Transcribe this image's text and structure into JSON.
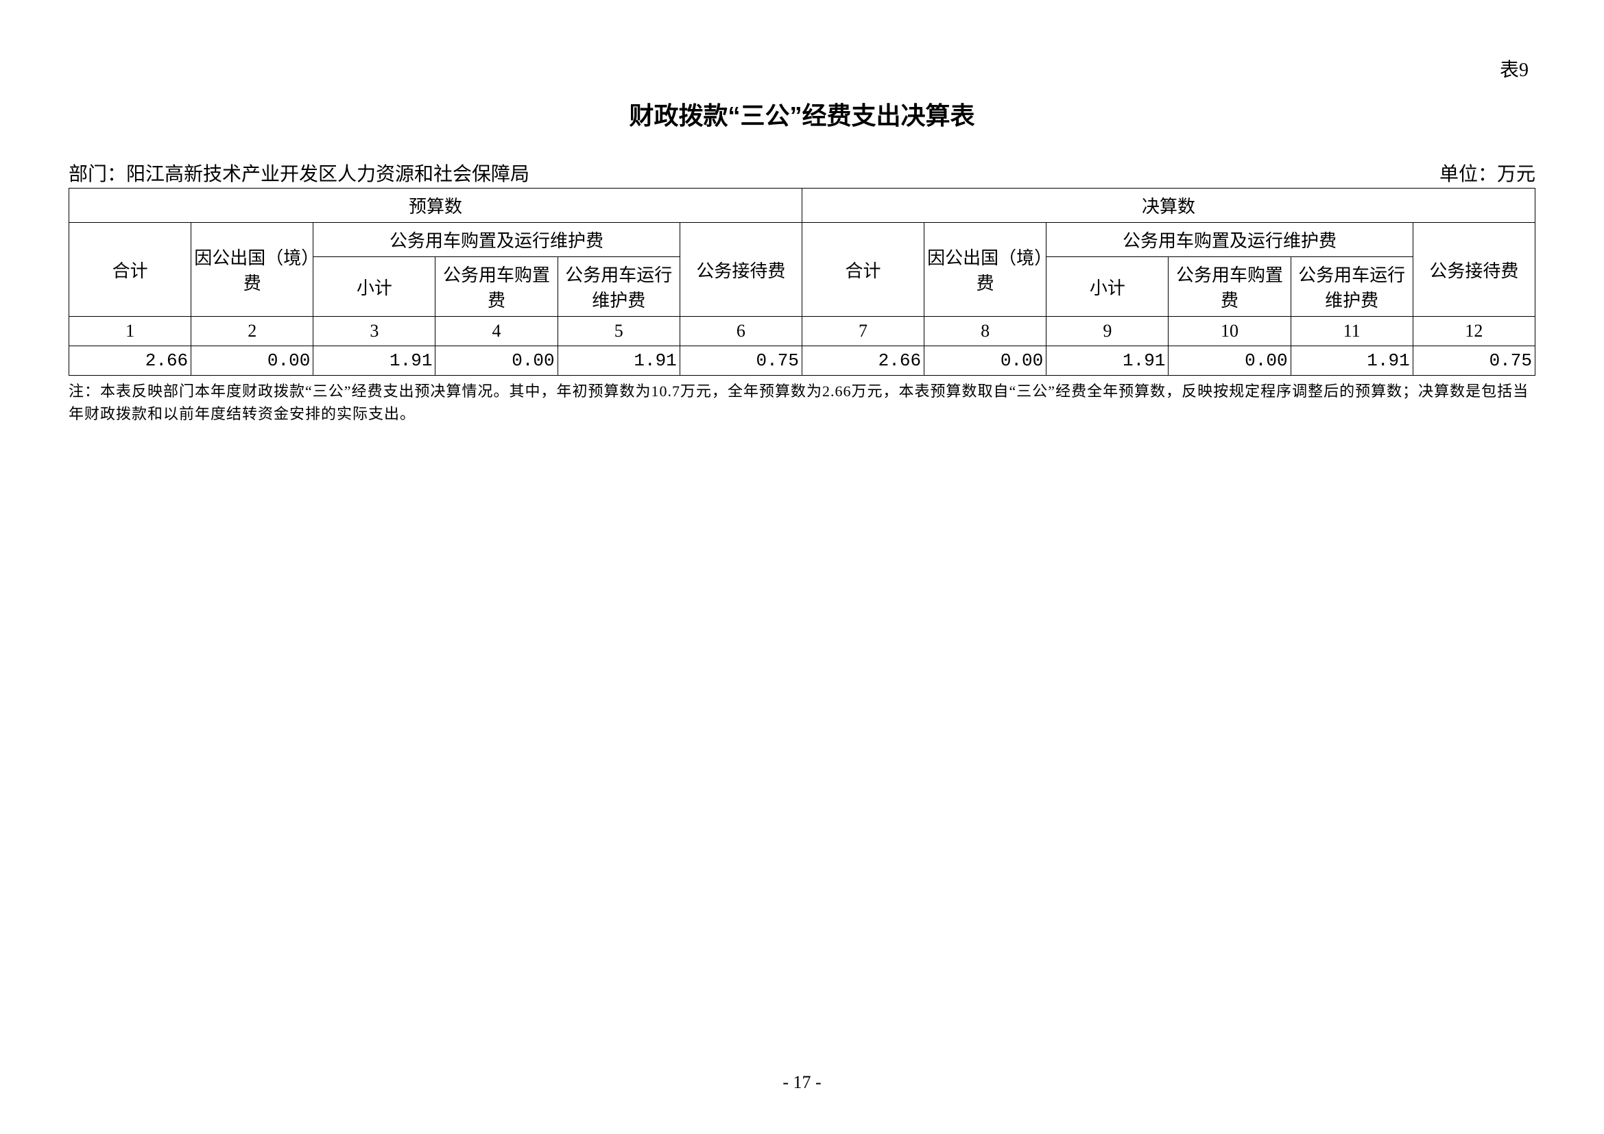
{
  "table_label": "表9",
  "title": "财政拨款“三公”经费支出决算表",
  "department_label": "部门：阳江高新技术产业开发区人力资源和社会保障局",
  "unit_label": "单位：万元",
  "headers": {
    "budget": "预算数",
    "settlement": "决算数",
    "total": "合计",
    "abroad": "因公出国（境）费",
    "vehicle_group": "公务用车购置及运行维护费",
    "subtotal": "小计",
    "vehicle_purchase": "公务用车购置费",
    "vehicle_operation": "公务用车运行维护费",
    "reception": "公务接待费"
  },
  "column_numbers": [
    "1",
    "2",
    "3",
    "4",
    "5",
    "6",
    "7",
    "8",
    "9",
    "10",
    "11",
    "12"
  ],
  "data_values": [
    "2.66",
    "0.00",
    "1.91",
    "0.00",
    "1.91",
    "0.75",
    "2.66",
    "0.00",
    "1.91",
    "0.00",
    "1.91",
    "0.75"
  ],
  "footnote": "注：本表反映部门本年度财政拨款“三公”经费支出预决算情况。其中，年初预算数为10.7万元，全年预算数为2.66万元，本表预算数取自“三公”经费全年预算数，反映按规定程序调整后的预算数；决算数是包括当年财政拨款和以前年度结转资金安排的实际支出。",
  "page_number": "- 17 -",
  "styling": {
    "background_color": "#ffffff",
    "border_color": "#000000",
    "text_color": "#000000",
    "title_fontsize": 36,
    "header_fontsize": 26,
    "body_fontsize": 26,
    "footnote_fontsize": 22
  }
}
